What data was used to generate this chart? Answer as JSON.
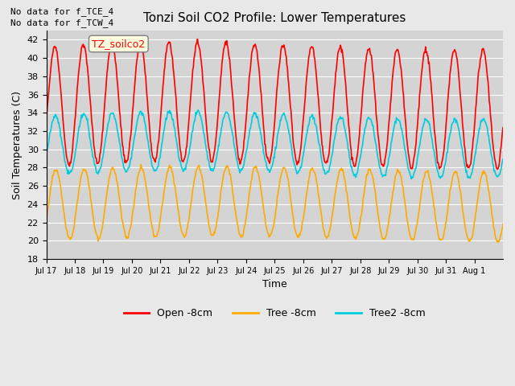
{
  "title": "Tonzi Soil CO2 Profile: Lower Temperatures",
  "ylabel": "Soil Temperatures (C)",
  "xlabel": "Time",
  "annotations": [
    "No data for f_TCE_4",
    "No data for f_TCW_4"
  ],
  "box_label": "TZ_soilco2",
  "ylim": [
    18,
    43
  ],
  "yticks": [
    18,
    20,
    22,
    24,
    26,
    28,
    30,
    32,
    34,
    36,
    38,
    40,
    42
  ],
  "xtick_labels": [
    "Jul 17",
    "Jul 18",
    "Jul 19",
    "Jul 20",
    "Jul 21",
    "Jul 22",
    "Jul 23",
    "Jul 24",
    "Jul 25",
    "Jul 26",
    "Jul 27",
    "Jul 28",
    "Jul 29",
    "Jul 30",
    "Jul 31",
    "Aug 1"
  ],
  "colors": {
    "open": "#ff0000",
    "tree": "#ffaa00",
    "tree2": "#00ccdd"
  },
  "legend_labels": [
    "Open -8cm",
    "Tree -8cm",
    "Tree2 -8cm"
  ],
  "background_color": "#e8e8e8",
  "plot_bg_color": "#d4d4d4"
}
